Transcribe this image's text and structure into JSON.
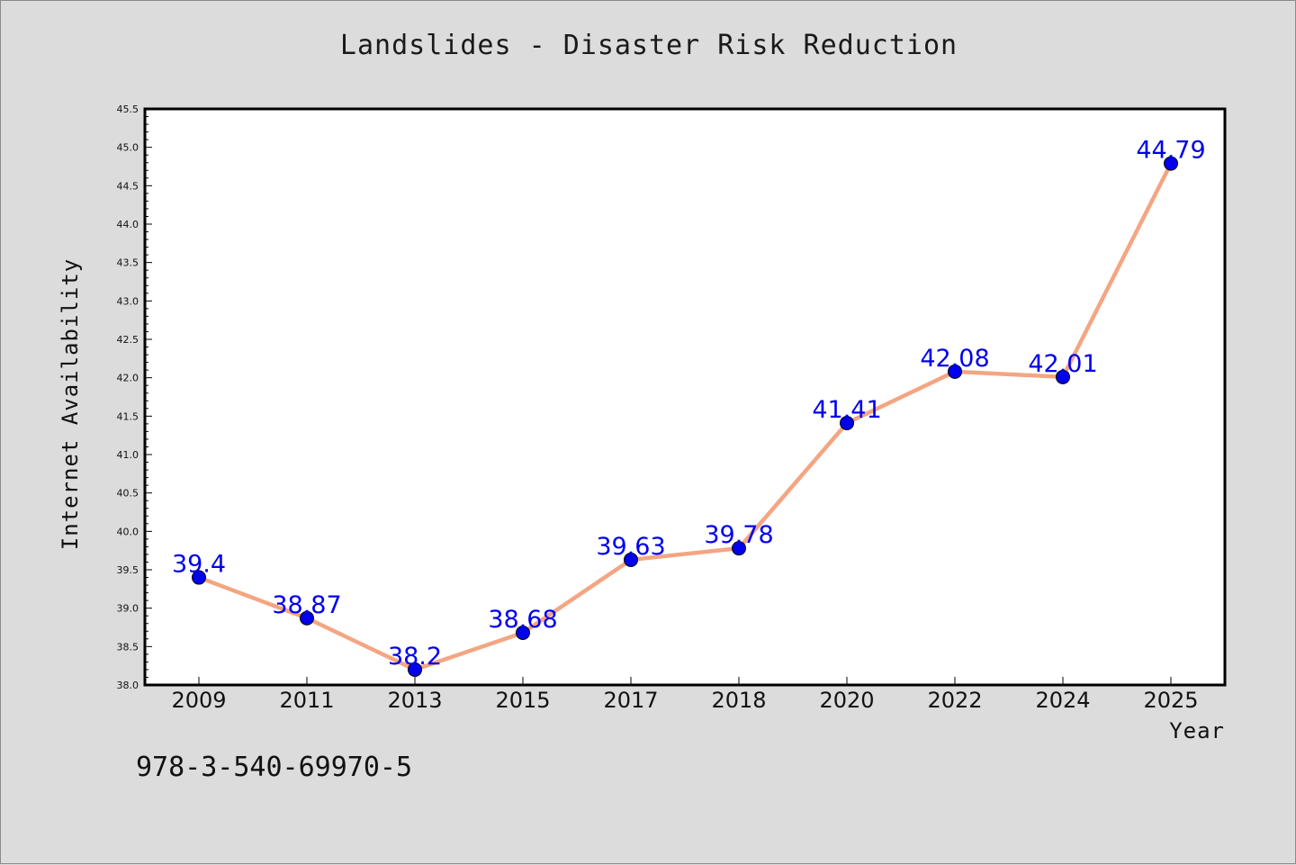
{
  "chart_data": {
    "type": "line",
    "title": "Landslides - Disaster Risk Reduction",
    "xlabel": "Year",
    "ylabel": "Internet Availability",
    "categories": [
      "2009",
      "2011",
      "2013",
      "2015",
      "2017",
      "2018",
      "2020",
      "2022",
      "2024",
      "2025"
    ],
    "series": [
      {
        "values": [
          39.4,
          38.87,
          38.2,
          38.68,
          39.63,
          39.78,
          41.41,
          42.08,
          42.01,
          44.79
        ],
        "labels": [
          "39.4",
          "38.87",
          "38.2",
          "38.68",
          "39.63",
          "39.78",
          "41.41",
          "42.08",
          "42.01",
          "44.79"
        ]
      }
    ],
    "ylim": [
      38.0,
      45.5
    ],
    "yticks": [
      "38.0",
      "38.5",
      "39.0",
      "39.5",
      "40.0",
      "40.5",
      "41.0",
      "41.5",
      "42.0",
      "42.5",
      "43.0",
      "43.5",
      "44.0",
      "44.5",
      "45.0",
      "45.5"
    ],
    "grid": false,
    "colors": {
      "line": "#f4a582",
      "marker": "#0000ee",
      "labels": "#0000ee",
      "background": "#dcdcdc",
      "plot_background": "#ffffff"
    }
  },
  "footnote": "978-3-540-69970-5"
}
